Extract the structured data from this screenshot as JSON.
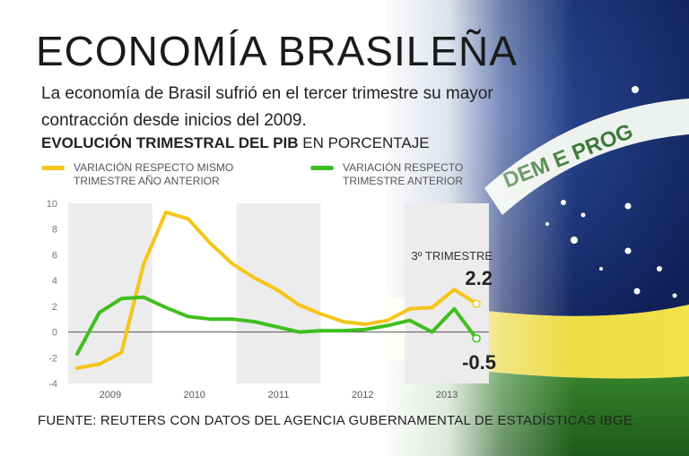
{
  "header": {
    "title": "ECONOMÍA BRASILEÑA",
    "subtitle": "La economía de Brasil sufrió en el tercer trimestre su mayor contracción desde inicios del 2009.",
    "section_bold": "EVOLUCIÓN TRIMESTRAL DEL PIB",
    "section_rest": " EN PORCENTAJE"
  },
  "legend": [
    {
      "label": "VARIACIÓN RESPECTO MISMO TRIMESTRE AÑO ANTERIOR",
      "color": "#f5c518"
    },
    {
      "label": "VARIACIÓN RESPECTO TRIMESTRE ANTERIOR",
      "color": "#3fbf1f"
    }
  ],
  "chart_data": {
    "type": "line",
    "title": "EVOLUCIÓN TRIMESTRAL DEL PIB EN PORCENTAJE",
    "x_labels": [
      "2009",
      "2010",
      "2011",
      "2012",
      "2013"
    ],
    "ylim": [
      -4,
      10
    ],
    "y_ticks": [
      "10",
      "8",
      "6",
      "4",
      "2",
      "0",
      "-2",
      "-4"
    ],
    "series": [
      {
        "name": "VARIACIÓN RESPECTO MISMO TRIMESTRE AÑO ANTERIOR",
        "color": "#f5c518",
        "values": [
          -2.8,
          -2.5,
          -1.6,
          5.3,
          9.3,
          8.8,
          6.9,
          5.3,
          4.2,
          3.3,
          2.1,
          1.4,
          0.8,
          0.6,
          0.9,
          1.8,
          1.9,
          3.3,
          2.2
        ]
      },
      {
        "name": "VARIACIÓN RESPECTO TRIMESTRE ANTERIOR",
        "color": "#3fbf1f",
        "values": [
          -1.7,
          1.5,
          2.6,
          2.7,
          1.9,
          1.2,
          1.0,
          1.0,
          0.8,
          0.4,
          0.0,
          0.1,
          0.1,
          0.2,
          0.5,
          0.9,
          0.0,
          1.8,
          -0.5
        ]
      }
    ],
    "annotations": {
      "label": "3º TRIMESTRE",
      "value_a": "2.2",
      "value_b": "-0.5"
    }
  },
  "footer": {
    "source": "FUENTE: REUTERS CON DATOS DEL AGENCIA GUBERNAMENTAL DE ESTADÍSTICAS IBGE."
  }
}
